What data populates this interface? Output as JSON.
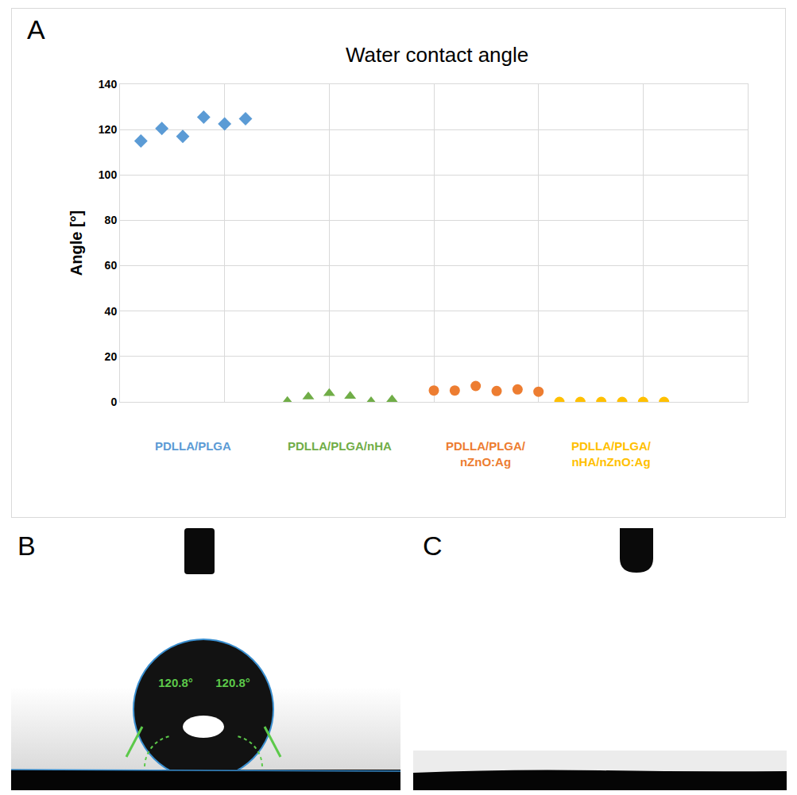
{
  "chart_data": {
    "type": "scatter",
    "title": "Water contact angle",
    "y_label": "Angle [°]",
    "xlim": [
      0,
      30
    ],
    "xticks": [
      0,
      5,
      10,
      15,
      20,
      25,
      30
    ],
    "ylim": [
      0,
      140
    ],
    "yticks": [
      0,
      20,
      40,
      60,
      80,
      100,
      120,
      140
    ],
    "grid": true,
    "tick_labels": "y",
    "series": [
      {
        "name": "PDLLA/PLGA",
        "color": "#5b9bd5",
        "marker": "diamond",
        "x": [
          1,
          2,
          3,
          4,
          5,
          6
        ],
        "values": [
          115,
          120.5,
          117,
          125.5,
          122.5,
          124.8
        ]
      },
      {
        "name": "PDLLA/PLGA/nHA",
        "color": "#70ad47",
        "marker": "triangle-up",
        "x": [
          8,
          9,
          10,
          11,
          12,
          13
        ],
        "values": [
          0.3,
          2.3,
          3.8,
          2.5,
          0.2,
          1
        ]
      },
      {
        "name": "PDLLA/PLGA/nZnO:Ag",
        "color": "#ed7d31",
        "marker": "circle",
        "x": [
          15,
          16,
          17,
          18,
          19,
          20
        ],
        "values": [
          5,
          5,
          7,
          4.8,
          5.5,
          4.5
        ]
      },
      {
        "name": "PDLLA/PLGA/nHA/nZnO:Ag",
        "color": "#ffc000",
        "marker": "circle",
        "x": [
          21,
          22,
          23,
          24,
          25,
          26
        ],
        "values": [
          0,
          0,
          0,
          0,
          0,
          0
        ]
      }
    ]
  },
  "panels": [
    {
      "letter": "A"
    },
    {
      "letter": "B",
      "angle_labels": [
        "120.8°",
        "120.8°"
      ]
    },
    {
      "letter": "C"
    }
  ]
}
